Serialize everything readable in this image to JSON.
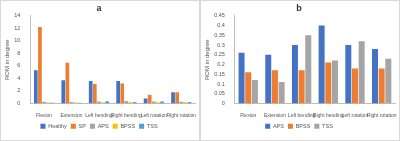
{
  "chart_data": [
    {
      "type": "bar",
      "title": "a",
      "y_label": "ROM in degree",
      "categories": [
        "Flexion",
        "Extension",
        "Left bending",
        "Right bending",
        "Left rotation",
        "Right rotation"
      ],
      "series": [
        {
          "name": "Healthy",
          "color": "#4472c4",
          "values": [
            5.3,
            3.7,
            3.6,
            3.6,
            0.8,
            1.8
          ]
        },
        {
          "name": "SP",
          "color": "#ed7d31",
          "values": [
            12.2,
            6.5,
            3.1,
            3.2,
            1.4,
            1.8
          ]
        },
        {
          "name": "APS",
          "color": "#a5a5a5",
          "values": [
            0.26,
            0.25,
            0.3,
            0.4,
            0.3,
            0.28
          ]
        },
        {
          "name": "BPSS",
          "color": "#ffc000",
          "values": [
            0.16,
            0.17,
            0.17,
            0.21,
            0.18,
            0.18
          ]
        },
        {
          "name": "TSS",
          "color": "#5b9bd5",
          "values": [
            0.12,
            0.11,
            0.35,
            0.22,
            0.32,
            0.23
          ]
        }
      ],
      "ylim": [
        0,
        14
      ],
      "yticks": [
        0,
        2,
        4,
        6,
        8,
        10,
        12,
        14
      ],
      "grid": false,
      "legend": "bottom"
    },
    {
      "type": "bar",
      "title": "b",
      "y_label": "ROM in degree",
      "categories": [
        "Flexion",
        "Extension",
        "Left bending",
        "Right bending",
        "Left rotation",
        "Right rotation"
      ],
      "series": [
        {
          "name": "APS",
          "color": "#4472c4",
          "values": [
            0.26,
            0.25,
            0.3,
            0.4,
            0.3,
            0.28
          ]
        },
        {
          "name": "BPSS",
          "color": "#ed7d31",
          "values": [
            0.16,
            0.17,
            0.17,
            0.21,
            0.18,
            0.18
          ]
        },
        {
          "name": "TSS",
          "color": "#a5a5a5",
          "values": [
            0.12,
            0.11,
            0.35,
            0.22,
            0.32,
            0.23
          ]
        }
      ],
      "ylim": [
        0,
        0.45
      ],
      "yticks": [
        0,
        0.05,
        0.1,
        0.15,
        0.2,
        0.25,
        0.3,
        0.35,
        0.4,
        0.45
      ],
      "grid": false,
      "legend": "bottom"
    }
  ]
}
